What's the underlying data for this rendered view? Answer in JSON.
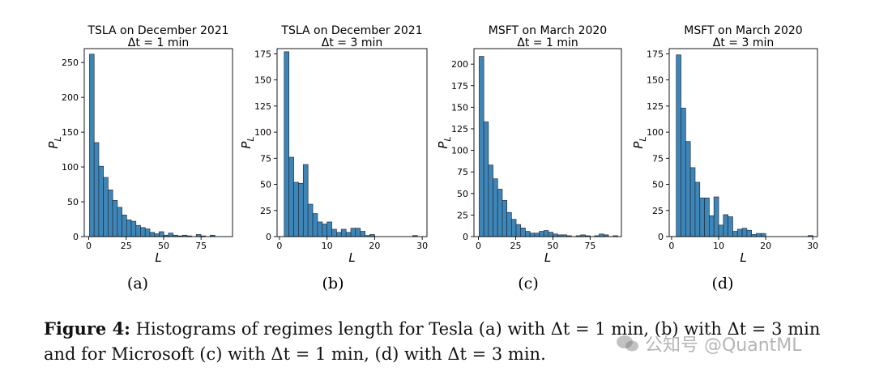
{
  "figure": {
    "caption_label": "Figure 4:",
    "caption_line1": "Histograms of regimes length for Tesla (a) with Δt = 1 min, (b) with Δt = 3 min",
    "caption_line2": "and for Microsoft (c) with Δt = 1 min, (d) with Δt = 3 min."
  },
  "watermark": {
    "text": "公知号 @QuantML",
    "icon": "wechat-icon"
  },
  "colors": {
    "bar_fill": "#3f86b8",
    "bar_edge": "#1f2f3f",
    "axis": "#000000"
  },
  "chart_data": [
    {
      "type": "bar",
      "panel_label": "(a)",
      "title": "TSLA on December 2021",
      "subtitle": "Δt = 1 min",
      "xlabel": "L",
      "ylabel": "P_L",
      "xlim": [
        -3,
        96
      ],
      "ylim": [
        0,
        270
      ],
      "xticks": [
        0,
        25,
        50,
        75
      ],
      "yticks": [
        0,
        50,
        100,
        150,
        200,
        250
      ],
      "bin_width": 3.1,
      "bin_start": 0.5,
      "values": [
        262,
        135,
        101,
        85,
        67,
        52,
        42,
        31,
        24,
        22,
        16,
        13,
        11,
        6,
        4,
        7,
        2,
        5,
        2,
        1,
        2,
        1,
        0,
        3,
        1,
        0,
        2,
        0,
        0,
        0
      ]
    },
    {
      "type": "bar",
      "panel_label": "(b)",
      "title": "TSLA on December 2021",
      "subtitle": "Δt = 3 min",
      "xlabel": "L",
      "ylabel": "P_L",
      "xlim": [
        -0.5,
        31
      ],
      "ylim": [
        0,
        180
      ],
      "xticks": [
        0,
        10,
        20,
        30
      ],
      "yticks": [
        0,
        25,
        50,
        75,
        100,
        125,
        150,
        175
      ],
      "bin_width": 1.0,
      "bin_start": 1,
      "values": [
        177,
        76,
        52,
        51,
        69,
        31,
        22,
        14,
        12,
        14,
        7,
        4,
        7,
        4,
        8,
        8,
        5,
        1,
        2,
        0,
        0,
        0,
        0,
        0,
        0,
        0,
        0,
        1,
        0
      ]
    },
    {
      "type": "bar",
      "panel_label": "(c)",
      "title": "MSFT on March 2020",
      "subtitle": "Δt = 1 min",
      "xlabel": "L",
      "ylabel": "P_L",
      "xlim": [
        -3,
        96
      ],
      "ylim": [
        0,
        218
      ],
      "xticks": [
        0,
        25,
        50,
        75
      ],
      "yticks": [
        0,
        25,
        50,
        75,
        100,
        125,
        150,
        175,
        200
      ],
      "bin_width": 3.1,
      "bin_start": 0.5,
      "values": [
        209,
        133,
        83,
        67,
        55,
        42,
        28,
        20,
        14,
        10,
        6,
        4,
        4,
        6,
        7,
        5,
        3,
        2,
        2,
        1,
        0,
        1,
        2,
        1,
        0,
        1,
        3,
        2,
        0,
        1
      ]
    },
    {
      "type": "bar",
      "panel_label": "(d)",
      "title": "MSFT on March 2020",
      "subtitle": "Δt = 3 min",
      "xlabel": "L",
      "ylabel": "P_L",
      "xlim": [
        -0.5,
        31
      ],
      "ylim": [
        0,
        180
      ],
      "xticks": [
        0,
        10,
        20,
        30
      ],
      "yticks": [
        0,
        25,
        50,
        75,
        100,
        125,
        150,
        175
      ],
      "bin_width": 1.0,
      "bin_start": 1,
      "values": [
        174,
        123,
        91,
        66,
        52,
        37,
        37,
        20,
        38,
        11,
        21,
        19,
        5,
        7,
        8,
        6,
        2,
        3,
        3,
        0,
        0,
        0,
        0,
        0,
        0,
        0,
        0,
        0,
        1
      ]
    }
  ]
}
